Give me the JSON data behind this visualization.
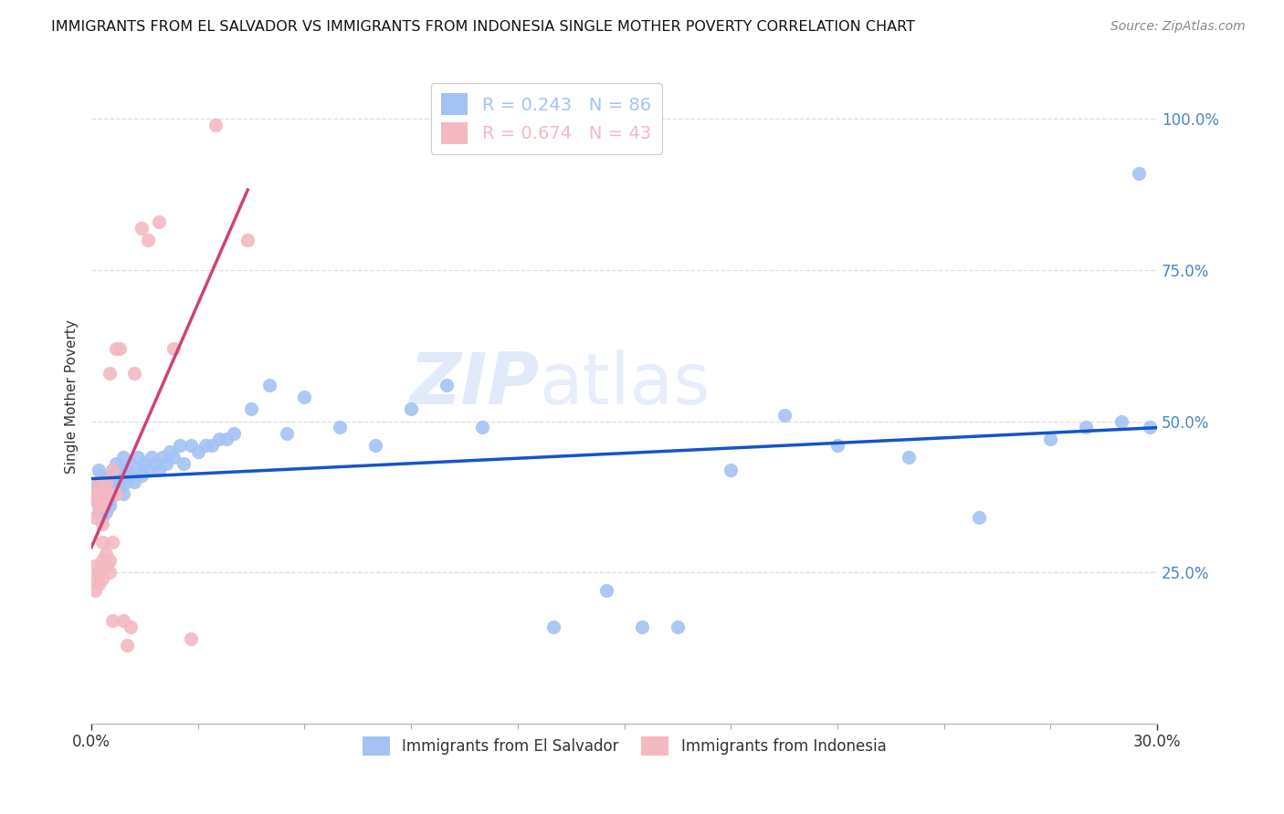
{
  "title": "IMMIGRANTS FROM EL SALVADOR VS IMMIGRANTS FROM INDONESIA SINGLE MOTHER POVERTY CORRELATION CHART",
  "source": "Source: ZipAtlas.com",
  "ylabel": "Single Mother Poverty",
  "legend_label1": "Immigrants from El Salvador",
  "legend_label2": "Immigrants from Indonesia",
  "r1": 0.243,
  "n1": 86,
  "r2": 0.674,
  "n2": 43,
  "color1": "#a4c2f4",
  "color2": "#f4b8c1",
  "line_color1": "#1155cc",
  "line_color2": "#cc4477",
  "watermark_zip": "ZIP",
  "watermark_atlas": "atlas",
  "xlim": [
    0.0,
    0.3
  ],
  "ylim": [
    0.0,
    1.08
  ],
  "yticks": [
    0.25,
    0.5,
    0.75,
    1.0
  ],
  "ytick_labels": [
    "25.0%",
    "50.0%",
    "75.0%",
    "100.0%"
  ],
  "blue_x": [
    0.001,
    0.001,
    0.001,
    0.002,
    0.002,
    0.002,
    0.002,
    0.002,
    0.003,
    0.003,
    0.003,
    0.003,
    0.003,
    0.003,
    0.004,
    0.004,
    0.004,
    0.004,
    0.004,
    0.004,
    0.005,
    0.005,
    0.005,
    0.005,
    0.005,
    0.006,
    0.006,
    0.006,
    0.006,
    0.007,
    0.007,
    0.007,
    0.008,
    0.008,
    0.008,
    0.009,
    0.009,
    0.01,
    0.01,
    0.011,
    0.011,
    0.012,
    0.013,
    0.014,
    0.014,
    0.015,
    0.016,
    0.017,
    0.018,
    0.019,
    0.02,
    0.021,
    0.022,
    0.023,
    0.025,
    0.026,
    0.028,
    0.03,
    0.032,
    0.034,
    0.036,
    0.038,
    0.04,
    0.045,
    0.05,
    0.055,
    0.06,
    0.07,
    0.08,
    0.09,
    0.1,
    0.11,
    0.13,
    0.145,
    0.155,
    0.165,
    0.18,
    0.195,
    0.21,
    0.23,
    0.25,
    0.27,
    0.28,
    0.29,
    0.295,
    0.298
  ],
  "blue_y": [
    0.38,
    0.37,
    0.39,
    0.36,
    0.38,
    0.4,
    0.35,
    0.42,
    0.34,
    0.37,
    0.39,
    0.36,
    0.41,
    0.38,
    0.35,
    0.39,
    0.37,
    0.41,
    0.38,
    0.4,
    0.36,
    0.38,
    0.41,
    0.39,
    0.37,
    0.4,
    0.38,
    0.42,
    0.39,
    0.41,
    0.38,
    0.43,
    0.39,
    0.42,
    0.4,
    0.44,
    0.38,
    0.42,
    0.4,
    0.41,
    0.43,
    0.4,
    0.44,
    0.42,
    0.41,
    0.43,
    0.42,
    0.44,
    0.43,
    0.42,
    0.44,
    0.43,
    0.45,
    0.44,
    0.46,
    0.43,
    0.46,
    0.45,
    0.46,
    0.46,
    0.47,
    0.47,
    0.48,
    0.52,
    0.56,
    0.48,
    0.54,
    0.49,
    0.46,
    0.52,
    0.56,
    0.49,
    0.16,
    0.22,
    0.16,
    0.16,
    0.42,
    0.51,
    0.46,
    0.44,
    0.34,
    0.47,
    0.49,
    0.5,
    0.91,
    0.49
  ],
  "pink_x": [
    0.001,
    0.001,
    0.001,
    0.001,
    0.001,
    0.001,
    0.002,
    0.002,
    0.002,
    0.002,
    0.002,
    0.003,
    0.003,
    0.003,
    0.003,
    0.003,
    0.003,
    0.004,
    0.004,
    0.004,
    0.004,
    0.004,
    0.005,
    0.005,
    0.005,
    0.005,
    0.006,
    0.006,
    0.006,
    0.007,
    0.007,
    0.008,
    0.009,
    0.01,
    0.011,
    0.012,
    0.014,
    0.016,
    0.019,
    0.023,
    0.028,
    0.035,
    0.044
  ],
  "pink_y": [
    0.37,
    0.38,
    0.34,
    0.22,
    0.24,
    0.26,
    0.23,
    0.25,
    0.38,
    0.36,
    0.4,
    0.24,
    0.27,
    0.3,
    0.33,
    0.38,
    0.36,
    0.28,
    0.38,
    0.4,
    0.26,
    0.37,
    0.25,
    0.27,
    0.38,
    0.58,
    0.42,
    0.3,
    0.17,
    0.38,
    0.62,
    0.62,
    0.17,
    0.13,
    0.16,
    0.58,
    0.82,
    0.8,
    0.83,
    0.62,
    0.14,
    0.99,
    0.8
  ]
}
